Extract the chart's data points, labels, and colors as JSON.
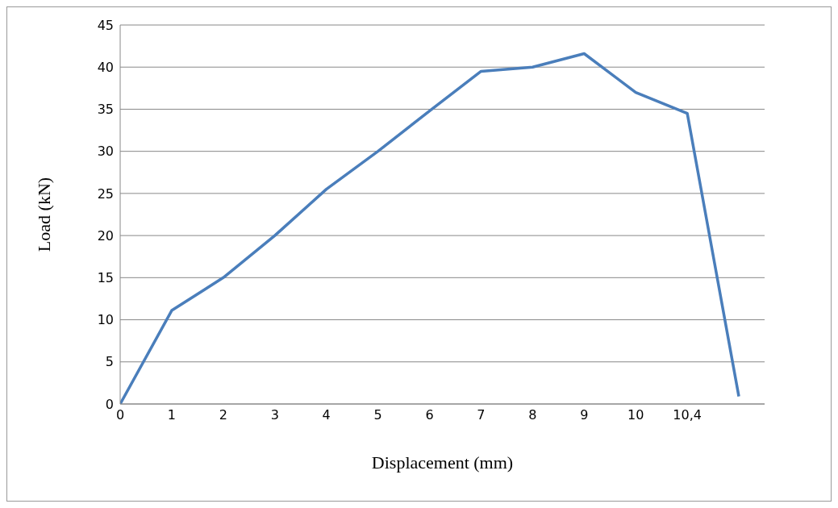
{
  "chart_data": {
    "type": "line",
    "xlabel": "Displacement (mm)",
    "ylabel": "Load (kN)",
    "categories": [
      "0",
      "1",
      "2",
      "3",
      "4",
      "5",
      "6",
      "7",
      "8",
      "9",
      "10",
      "10,4",
      null
    ],
    "series": [
      {
        "color": "#4a7ebb",
        "values": [
          0,
          11.1,
          15,
          20,
          25.5,
          30,
          34.8,
          39.5,
          40,
          41.6,
          37,
          34.5,
          0.9
        ]
      }
    ],
    "ylim": [
      0,
      45
    ],
    "yticks": [
      0,
      5,
      10,
      15,
      20,
      25,
      30,
      35,
      40,
      45
    ],
    "grid": "y",
    "marker": "none",
    "line_style": "solid",
    "legend": false
  }
}
